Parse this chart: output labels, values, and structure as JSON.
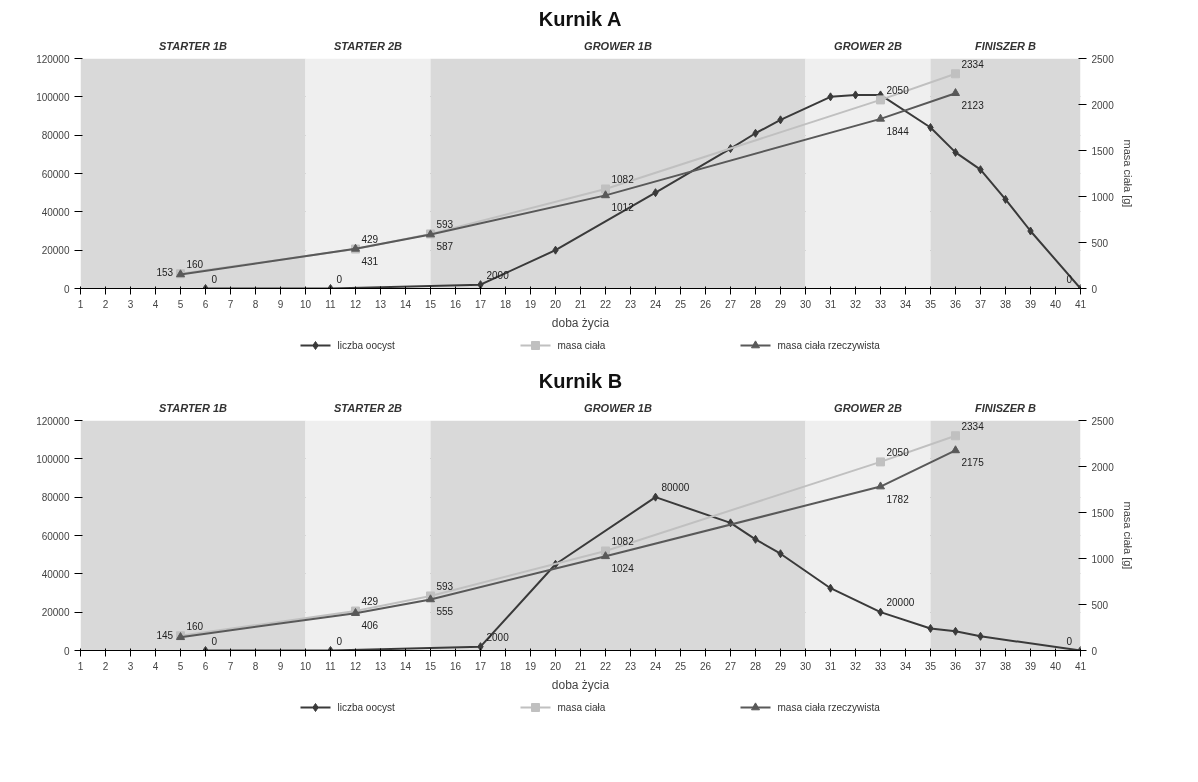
{
  "chart_data": [
    {
      "type": "line",
      "title": "Kurnik A",
      "xlabel": "doba życia",
      "y2label": "masa ciała [g]",
      "xlim": [
        1,
        41
      ],
      "xticks": [
        1,
        2,
        3,
        4,
        5,
        6,
        7,
        8,
        9,
        10,
        11,
        12,
        13,
        14,
        15,
        16,
        17,
        18,
        19,
        20,
        21,
        22,
        23,
        24,
        25,
        26,
        27,
        28,
        29,
        30,
        31,
        32,
        33,
        34,
        35,
        36,
        37,
        38,
        39,
        40,
        41
      ],
      "ylim": [
        0,
        120000
      ],
      "yticks": [
        0,
        20000,
        40000,
        60000,
        80000,
        100000,
        120000
      ],
      "y2lim": [
        0,
        2500
      ],
      "y2ticks": [
        0,
        500,
        1000,
        1500,
        2000,
        2500
      ],
      "grid": "y",
      "legend": "bottom",
      "bands": [
        {
          "axis": "x",
          "from": 1,
          "to": 10,
          "label": "STARTER 1B",
          "color": "#d9d9d9"
        },
        {
          "axis": "x",
          "from": 10,
          "to": 15,
          "label": "STARTER 2B",
          "color": "#efefef"
        },
        {
          "axis": "x",
          "from": 15,
          "to": 30,
          "label": "GROWER 1B",
          "color": "#d9d9d9"
        },
        {
          "axis": "x",
          "from": 30,
          "to": 35,
          "label": "GROWER 2B",
          "color": "#efefef"
        },
        {
          "axis": "x",
          "from": 35,
          "to": 41,
          "label": "FINISZER B",
          "color": "#d9d9d9"
        }
      ],
      "series": [
        {
          "name": "liczba oocyst",
          "color": "#3a3a3a",
          "marker": "diamond",
          "x": [
            6,
            11,
            17,
            20,
            24,
            27,
            28,
            29,
            31,
            32,
            33,
            35,
            36,
            37,
            38,
            39,
            41
          ],
          "values": [
            0,
            0,
            2000,
            20000,
            50000,
            73000,
            81000,
            88000,
            100000,
            101000,
            101000,
            84000,
            71000,
            62000,
            46500,
            30000,
            0
          ],
          "value_labels": [
            "0",
            "0",
            "2000",
            null,
            null,
            null,
            null,
            null,
            null,
            null,
            null,
            null,
            null,
            null,
            null,
            null,
            "0"
          ]
        },
        {
          "name": "masa ciała",
          "color": "#c0c0c0",
          "marker": "square",
          "axis": "y2",
          "x": [
            5,
            12,
            15,
            22,
            33,
            36
          ],
          "values": [
            160,
            429,
            593,
            1082,
            2050,
            2334
          ],
          "value_labels": [
            "160",
            "429",
            "593",
            "1082",
            "2050",
            "2334"
          ]
        },
        {
          "name": "masa ciała rzeczywista",
          "color": "#595959",
          "marker": "triangle",
          "axis": "y2",
          "x": [
            5,
            12,
            15,
            22,
            33,
            36
          ],
          "values": [
            153,
            431,
            587,
            1012,
            1844,
            2123
          ],
          "value_labels": [
            "153",
            "431",
            "587",
            "1012",
            "1844",
            "2123"
          ]
        }
      ]
    },
    {
      "type": "line",
      "title": "Kurnik B",
      "xlabel": "doba życia",
      "y2label": "masa ciała [g]",
      "xlim": [
        1,
        41
      ],
      "xticks": [
        1,
        2,
        3,
        4,
        5,
        6,
        7,
        8,
        9,
        10,
        11,
        12,
        13,
        14,
        15,
        16,
        17,
        18,
        19,
        20,
        21,
        22,
        23,
        24,
        25,
        26,
        27,
        28,
        29,
        30,
        31,
        32,
        33,
        34,
        35,
        36,
        37,
        38,
        39,
        40,
        41
      ],
      "ylim": [
        0,
        120000
      ],
      "yticks": [
        0,
        20000,
        40000,
        60000,
        80000,
        100000,
        120000
      ],
      "y2lim": [
        0,
        2500
      ],
      "y2ticks": [
        0,
        500,
        1000,
        1500,
        2000,
        2500
      ],
      "grid": "y",
      "legend": "bottom",
      "bands": [
        {
          "axis": "x",
          "from": 1,
          "to": 10,
          "label": "STARTER 1B",
          "color": "#d9d9d9"
        },
        {
          "axis": "x",
          "from": 10,
          "to": 15,
          "label": "STARTER 2B",
          "color": "#efefef"
        },
        {
          "axis": "x",
          "from": 15,
          "to": 30,
          "label": "GROWER 1B",
          "color": "#d9d9d9"
        },
        {
          "axis": "x",
          "from": 30,
          "to": 35,
          "label": "GROWER 2B",
          "color": "#efefef"
        },
        {
          "axis": "x",
          "from": 35,
          "to": 41,
          "label": "FINISZER B",
          "color": "#d9d9d9"
        }
      ],
      "series": [
        {
          "name": "liczba oocyst",
          "color": "#3a3a3a",
          "marker": "diamond",
          "x": [
            6,
            11,
            17,
            20,
            24,
            27,
            28,
            29,
            31,
            33,
            35,
            36,
            37,
            41
          ],
          "values": [
            0,
            0,
            2000,
            45000,
            80000,
            66600,
            58000,
            50500,
            32500,
            20000,
            11500,
            10000,
            7400,
            0
          ],
          "value_labels": [
            "0",
            "0",
            "2000",
            null,
            "80000",
            null,
            null,
            null,
            null,
            "20000",
            null,
            null,
            null,
            "0"
          ]
        },
        {
          "name": "masa ciała",
          "color": "#c0c0c0",
          "marker": "square",
          "axis": "y2",
          "x": [
            5,
            12,
            15,
            22,
            33,
            36
          ],
          "values": [
            160,
            429,
            593,
            1082,
            2050,
            2334
          ],
          "value_labels": [
            "160",
            "429",
            "593",
            "1082",
            "2050",
            "2334"
          ]
        },
        {
          "name": "masa ciała rzeczywista",
          "color": "#595959",
          "marker": "triangle",
          "axis": "y2",
          "x": [
            5,
            12,
            15,
            22,
            33,
            36
          ],
          "values": [
            145,
            406,
            555,
            1024,
            1782,
            2175
          ],
          "value_labels": [
            "145",
            "406",
            "555",
            "1024",
            "1782",
            "2175"
          ]
        }
      ]
    }
  ]
}
